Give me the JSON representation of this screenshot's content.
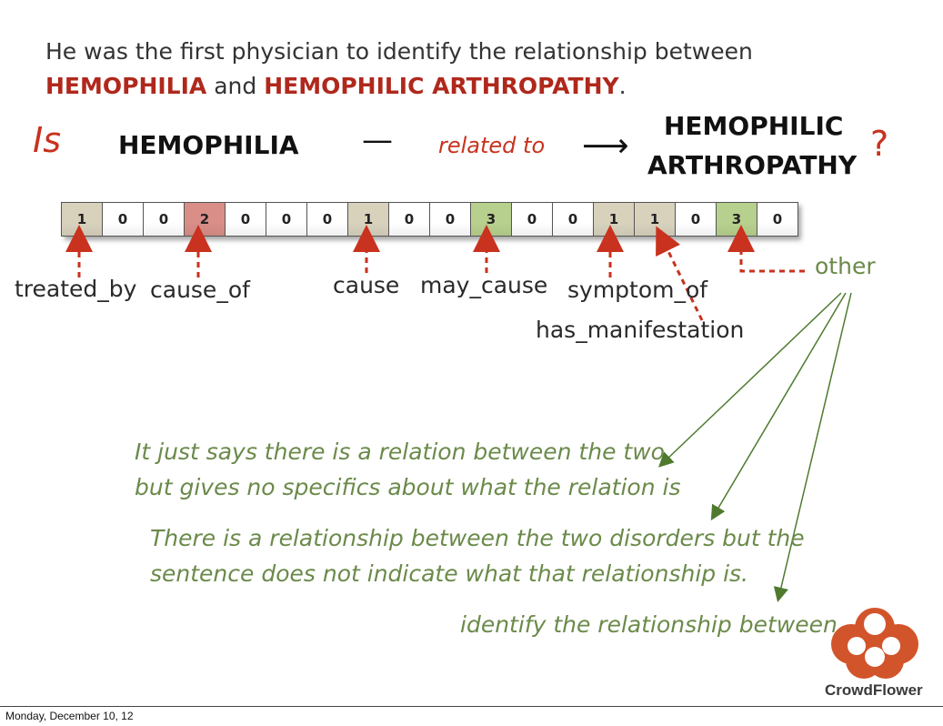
{
  "sentence": {
    "part1": "He was the first physician to identify the relationship between",
    "term1": "HEMOPHILIA",
    "connector": " and ",
    "term2": "HEMOPHILIC ARTHROPATHY",
    "end": "."
  },
  "question": {
    "is": "Is",
    "term_a": "HEMOPHILIA",
    "dash": "—",
    "relation": "related to",
    "arrow": "⟶",
    "term_b_line1": "HEMOPHILIC",
    "term_b_line2": "ARTHROPATHY",
    "qmark": "?"
  },
  "vector": {
    "values": [
      "1",
      "0",
      "0",
      "2",
      "0",
      "0",
      "0",
      "1",
      "0",
      "0",
      "3",
      "0",
      "0",
      "1",
      "1",
      "0",
      "3",
      "0"
    ],
    "colors": [
      "#d8d2bd",
      "#ffffff",
      "#ffffff",
      "#d98e88",
      "#ffffff",
      "#ffffff",
      "#ffffff",
      "#d8d2bd",
      "#ffffff",
      "#ffffff",
      "#b8d08e",
      "#ffffff",
      "#ffffff",
      "#d8d2bd",
      "#d8d2bd",
      "#ffffff",
      "#b8d08e",
      "#ffffff"
    ]
  },
  "labels": {
    "treated_by": "treated_by",
    "cause_of": "cause_of",
    "cause": "cause",
    "may_cause": "may_cause",
    "symptom_of": "symptom_of",
    "has_manifestation": "has_manifestation",
    "other": "other"
  },
  "quotes": {
    "q1_line1": "It just says there is a relation between the two",
    "q1_line2": "but gives no specifics about what the relation is",
    "q2_line1": "There is a relationship between the two disorders but the",
    "q2_line2": "sentence does not indicate what that relationship is.",
    "q3": "identify the relationship between"
  },
  "footer": {
    "date": "Monday, December 10, 12"
  },
  "brand": {
    "name": "CrowdFlower",
    "color": "#d2542a"
  },
  "colors": {
    "red": "#c8321e",
    "green": "#6b8a4a",
    "arrow_green": "#4e7a2e"
  }
}
